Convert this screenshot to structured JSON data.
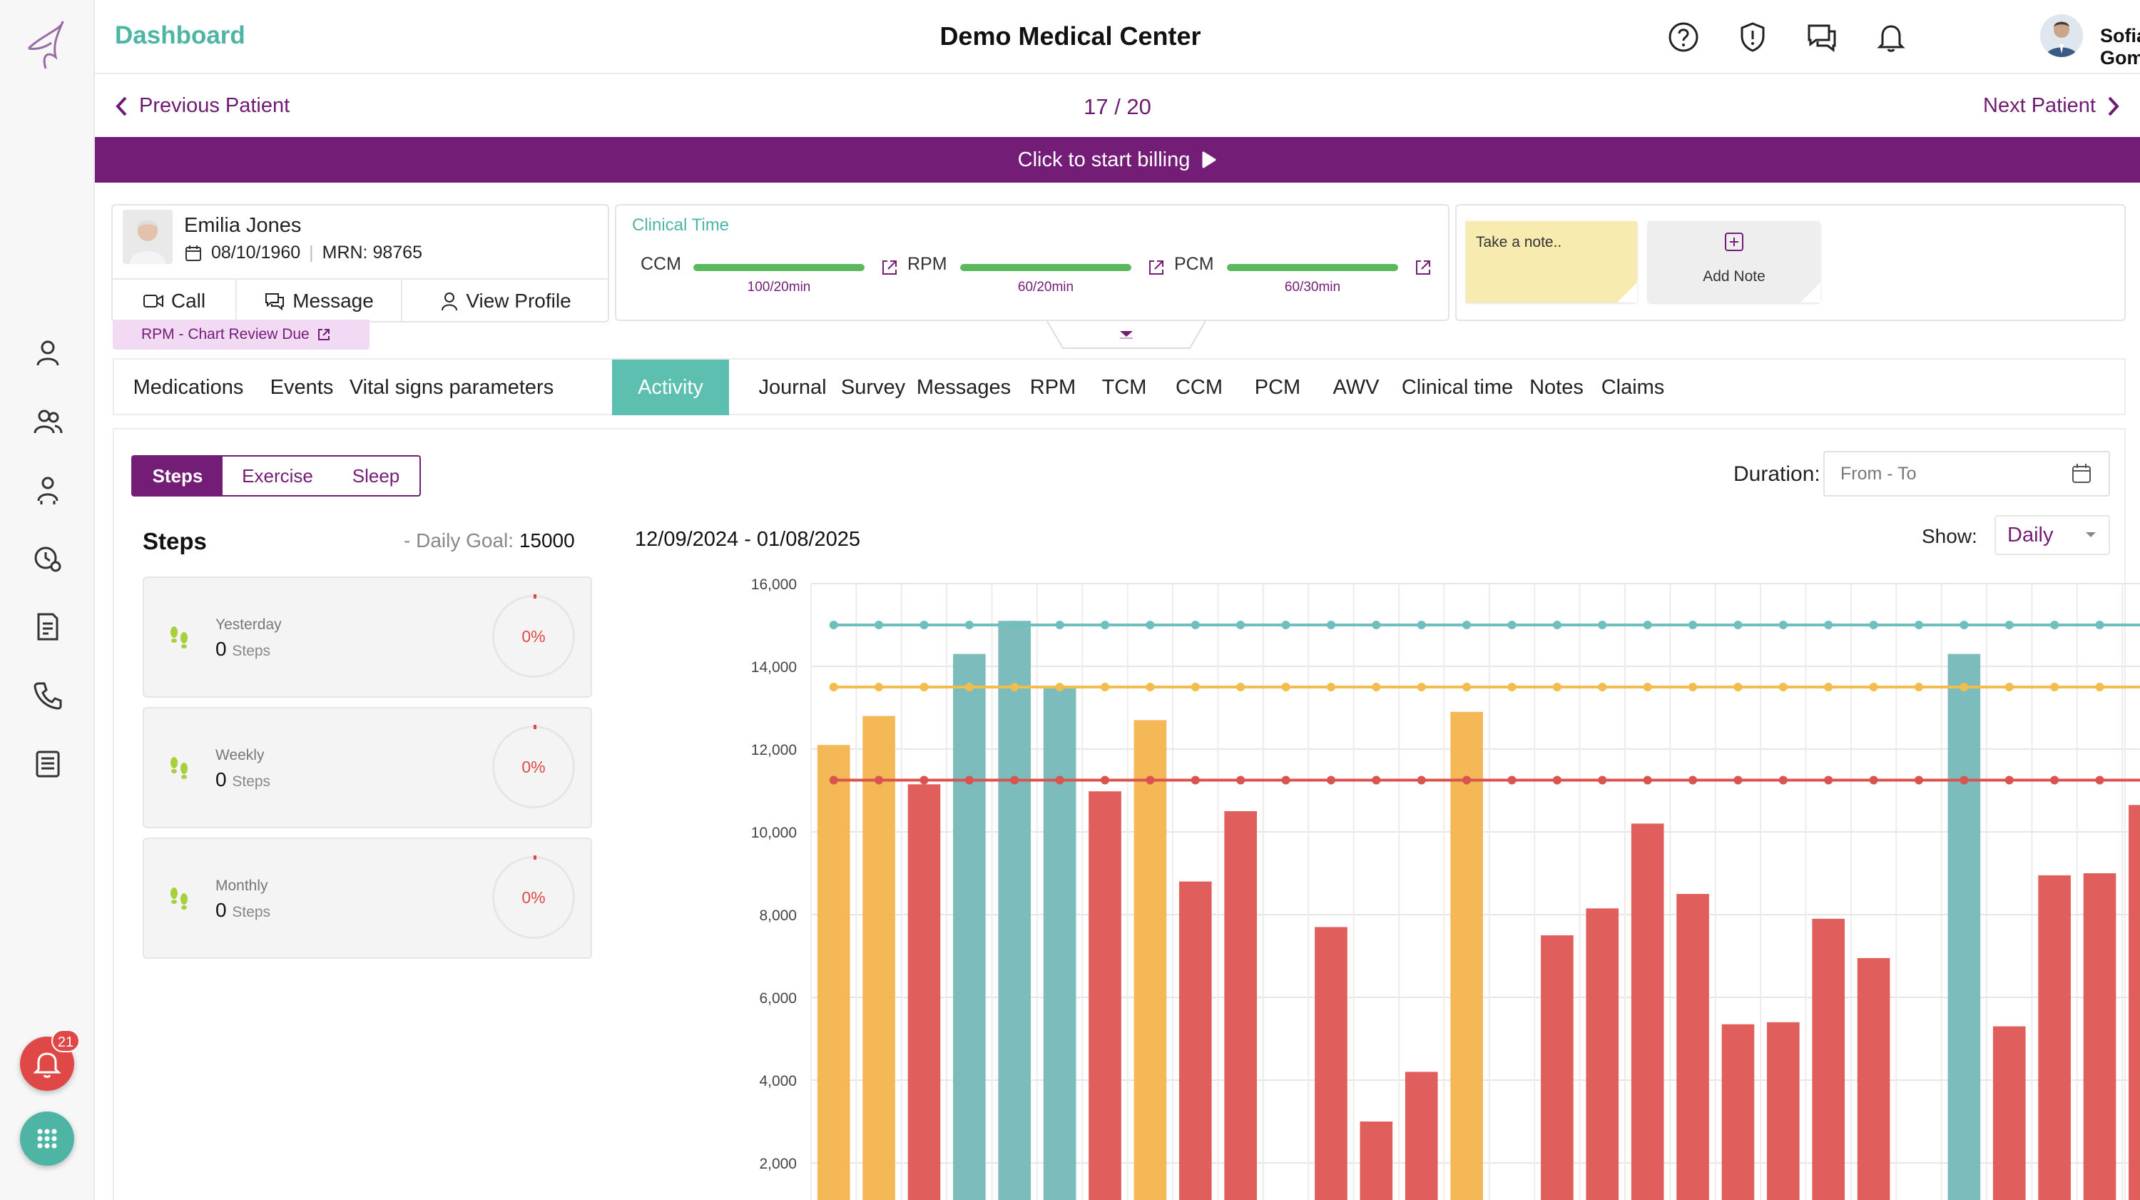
{
  "header": {
    "app_title": "Dashboard",
    "center_title": "Demo Medical Center",
    "user_name": "Sofia Gomez"
  },
  "navigation": {
    "prev_label": "Previous Patient",
    "counter": "17 / 20",
    "next_label": "Next Patient"
  },
  "billing": {
    "label": "Click to start billing"
  },
  "sidebar": {
    "alarm_count": "21"
  },
  "patient": {
    "name": "Emilia Jones",
    "dob": "08/10/1960",
    "mrn": "MRN: 98765",
    "call_label": "Call",
    "message_label": "Message",
    "view_profile_label": "View Profile",
    "tag": "RPM - Chart Review Due"
  },
  "clinical_time": {
    "title": "Clinical Time",
    "items": [
      {
        "label": "CCM",
        "value": "100/20min"
      },
      {
        "label": "RPM",
        "value": "60/20min"
      },
      {
        "label": "PCM",
        "value": "60/30min"
      }
    ]
  },
  "notes": {
    "placeholder": "Take a note..",
    "add_label": "Add Note"
  },
  "tabs": [
    "Medications",
    "Events",
    "Vital signs parameters",
    "Activity",
    "Journal",
    "Survey",
    "Messages",
    "RPM",
    "TCM",
    "CCM",
    "PCM",
    "AWV",
    "Clinical time",
    "Notes",
    "Claims"
  ],
  "active_tab": "Activity",
  "activity": {
    "segments": [
      "Steps",
      "Exercise",
      "Sleep"
    ],
    "active_segment": "Steps",
    "steps_title": "Steps",
    "goal_prefix": "- Daily Goal:",
    "goal_value": "15000",
    "stats": [
      {
        "label": "Yesterday",
        "value": "0",
        "unit": "Steps",
        "percent": "0%"
      },
      {
        "label": "Weekly",
        "value": "0",
        "unit": "Steps",
        "percent": "0%"
      },
      {
        "label": "Monthly",
        "value": "0",
        "unit": "Steps",
        "percent": "0%"
      }
    ],
    "date_range": "12/09/2024 - 01/08/2025",
    "duration_label": "Duration:",
    "duration_placeholder": "From - To",
    "show_label": "Show:",
    "show_value": "Daily"
  },
  "colors": {
    "brand_purple": "#741d76",
    "teal": "#4eb5a5",
    "bar_yellow": "#f5b857",
    "bar_teal": "#7cbcbd",
    "bar_red": "#e05f5c"
  },
  "chart_data": {
    "type": "bar",
    "y_ticks": [
      "16,000",
      "14,000",
      "12,000",
      "10,000",
      "8,000",
      "6,000",
      "4,000",
      "2,000"
    ],
    "ylim": [
      1500,
      16000
    ],
    "values": [
      12100,
      12800,
      11150,
      14300,
      15100,
      13500,
      10980,
      12700,
      8800,
      10500,
      null,
      7700,
      3000,
      4200,
      12900,
      null,
      7500,
      8150,
      10200,
      8500,
      5350,
      5400,
      7900,
      6950,
      null,
      14300,
      5300,
      8950,
      9000,
      10650
    ],
    "bar_colors": [
      "yellow",
      "yellow",
      "red",
      "teal",
      "teal",
      "teal",
      "red",
      "yellow",
      "red",
      "red",
      null,
      "red",
      "red",
      "red",
      "yellow",
      null,
      "red",
      "red",
      "red",
      "red",
      "red",
      "red",
      "red",
      "red",
      null,
      "teal",
      "red",
      "red",
      "red",
      "red"
    ],
    "reference_lines": [
      {
        "value": 15000,
        "color": "#6fbfbf"
      },
      {
        "value": 13500,
        "color": "#f2bd4c"
      },
      {
        "value": 11250,
        "color": "#d9534f"
      }
    ]
  }
}
